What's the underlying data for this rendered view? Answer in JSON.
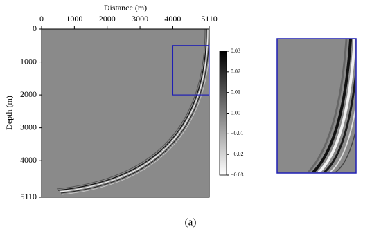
{
  "chart_data": {
    "type": "heatmap",
    "xlabel": "Distance (m)",
    "ylabel": "Depth (m)",
    "xlim": [
      0,
      5110
    ],
    "xticks": [
      0,
      1000,
      2000,
      3000,
      4000,
      5110
    ],
    "ylim": [
      0,
      5110
    ],
    "yticks": [
      0,
      1000,
      2000,
      3000,
      4000,
      5110
    ],
    "y_inverted": true,
    "clim": [
      -0.03,
      0.03
    ],
    "cticks": [
      0.03,
      0.02,
      0.01,
      {
        "value": 0,
        "label": "0.00"
      },
      {
        "value": -0.01,
        "label": "−0.01"
      },
      {
        "value": -0.02,
        "label": "−0.02"
      },
      {
        "value": -0.03,
        "label": "−0.03"
      }
    ],
    "colormap": [
      "#ffffff",
      "#000000"
    ],
    "zoom_box": {
      "xlim": [
        4000,
        5110
      ],
      "ylim": [
        500,
        2000
      ],
      "color": "#1f1fb4"
    },
    "caption": "(a)"
  }
}
